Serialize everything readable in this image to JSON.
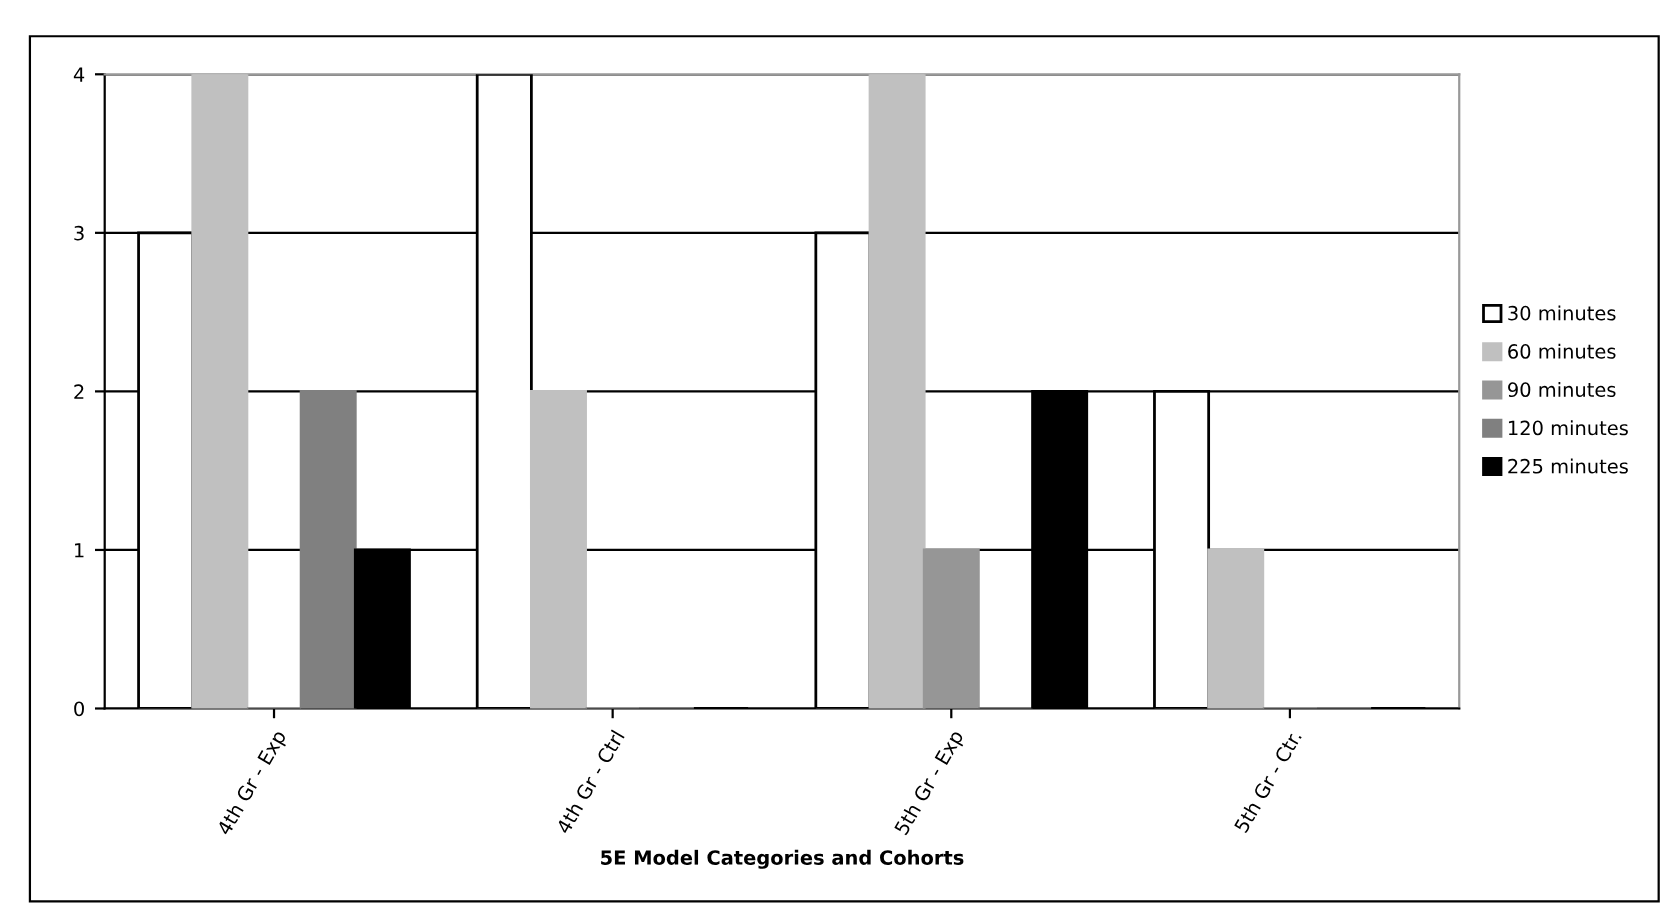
{
  "chart_data": {
    "type": "bar",
    "xlabel": "5E Model Categories and Cohorts",
    "categories": [
      "4th Gr - Exp",
      "4th Gr - Ctrl",
      "5th Gr - Exp",
      "5th Gr - Ctr."
    ],
    "series": [
      {
        "name": "30 minutes",
        "color": "#ffffff",
        "values": [
          3,
          4,
          3,
          2
        ]
      },
      {
        "name": "60 minutes",
        "color": "#c0c0c0",
        "values": [
          4,
          2,
          4,
          1
        ]
      },
      {
        "name": "90 minutes",
        "color": "#969696",
        "values": [
          0,
          0,
          1,
          0
        ]
      },
      {
        "name": "120 minutes",
        "color": "#808080",
        "values": [
          2,
          0,
          0,
          0
        ]
      },
      {
        "name": "225 minutes",
        "color": "#000000",
        "values": [
          1,
          0,
          2,
          0
        ]
      }
    ],
    "ylim": [
      0,
      4
    ],
    "yticks": [
      0,
      1,
      2,
      3,
      4
    ],
    "grid": "y",
    "legend": "right"
  }
}
